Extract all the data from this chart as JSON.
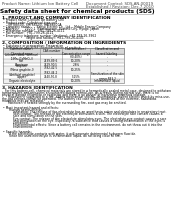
{
  "background_color": "#ffffff",
  "header_left": "Product Name: Lithium Ion Battery Cell",
  "header_right_line1": "Document Control: SDS-AN-00019",
  "header_right_line2": "Established / Revision: Dec.7.2010",
  "title": "Safety data sheet for chemical products (SDS)",
  "section1_title": "1. PRODUCT AND COMPANY IDENTIFICATION",
  "section1_lines": [
    " • Product name: Lithium Ion Battery Cell",
    " • Product code: Cylindrical-type cell",
    "      SHY88500, SHY66500, SHY88500A",
    " • Company name:      Sanyo Electric Co., Ltd.,  Mobile Energy Company",
    " • Address:      2200-1  Kamimuraen, Sumoto City, Hyogo, Japan",
    " • Telephone number:   +81-799-26-4111",
    " • Fax number:  +81-799-26-4121",
    " • Emergency telephone number (daytime): +81-799-26-3962",
    "                        (Night and holiday): +81-799-26-4101"
  ],
  "section2_title": "2. COMPOSITION / INFORMATION ON INGREDIENTS",
  "section2_intro": " • Substance or preparation: Preparation",
  "section2_sub": " • Information about the chemical nature of product:",
  "table_headers": [
    "Common name /\nChemical name",
    "CAS number",
    "Concentration /\nConcentration range",
    "Classification and\nhazard labeling"
  ],
  "table_rows": [
    [
      "Lithium cobalt (laminar)\n(LiMn₂(CoMnO₄))",
      "-",
      "(30-40%)",
      "-"
    ],
    [
      "Iron",
      "7439-89-6",
      "10-20%",
      "-"
    ],
    [
      "Aluminum",
      "7429-90-5",
      "2-8%",
      "-"
    ],
    [
      "Graphite\n(Meso graphite-I)\n(Artificial graphite)",
      "7782-42-5\n7782-44-2",
      "10-25%",
      "-"
    ],
    [
      "Copper",
      "7440-50-8",
      "5-15%",
      "Sensitization of the skin\ngroup R43.2"
    ],
    [
      "Organic electrolyte",
      "-",
      "10-20%",
      "Inflammable liquid"
    ]
  ],
  "section3_title": "3. HAZARDS IDENTIFICATION",
  "section3_body": [
    "   For this battery cell, chemical materials are stored in a hermetically sealed metal case, designed to withstand",
    "temperatures and pressures encountered during normal use. As a result, during normal use, there is no",
    "physical danger of ignition or explosion and there is no danger of hazardous materials leakage.",
    "      However, if subjected to a fire, added mechanical shocks, decomposed, violent electric shock by miss-use,",
    "the gas release cannot be operated. The battery cell case will be breached at the extreme, hazardous",
    "materials may be released.",
    "      Moreover, if heated strongly by the surrounding fire, soot gas may be emitted.",
    "",
    " • Most important hazard and effects:",
    "       Human health effects:",
    "           Inhalation: The release of the electrolyte has an anesthesia action and stimulates in respiratory tract.",
    "           Skin contact: The release of the electrolyte stimulates a skin. The electrolyte skin contact causes a",
    "           sore and stimulation on the skin.",
    "           Eye contact: The release of the electrolyte stimulates eyes. The electrolyte eye contact causes a sore",
    "           and stimulation on the eye. Especially, a substance that causes a strong inflammation of the eyes is",
    "           contained.",
    "           Environmental effects: Since a battery cell remains in the environment, do not throw out it into the",
    "           environment.",
    "",
    " • Specific hazards:",
    "       If the electrolyte contacts with water, it will generate detrimental hydrogen fluoride.",
    "       Since the used electrolyte is inflammable liquid, do not bring close to fire."
  ],
  "fs_header": 2.8,
  "fs_title": 4.2,
  "fs_section": 3.2,
  "fs_body": 2.2,
  "fs_table": 2.0
}
